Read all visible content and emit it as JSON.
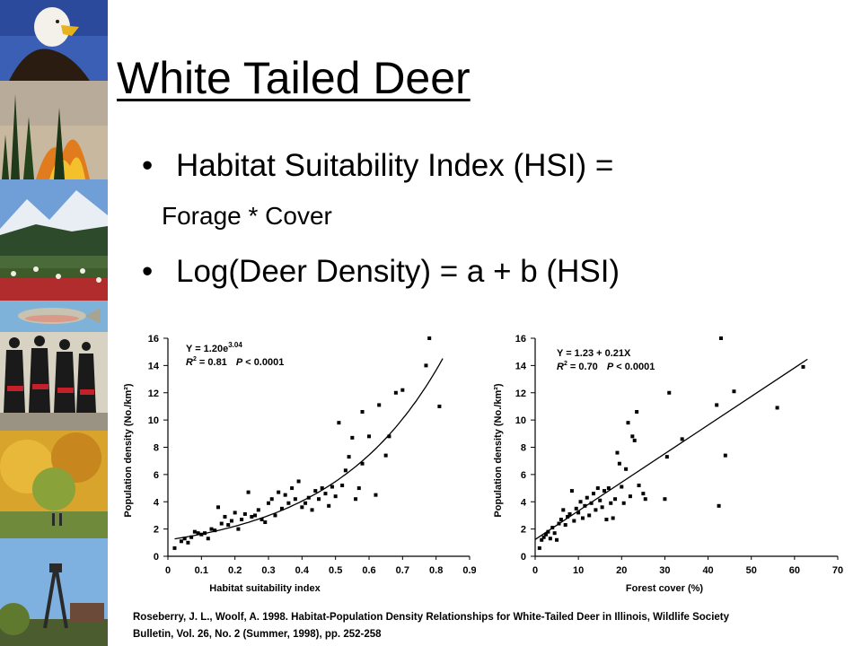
{
  "slide": {
    "title": "White Tailed Deer",
    "bullets": [
      "Habitat Suitability Index (HSI) =",
      "Log(Deer Density) = a + b (HSI)"
    ],
    "sub_bullet": "Forage * Cover",
    "citation": [
      "Roseberry,  J. L., Woolf, A. 1998.  Habitat-Population  Density Relationships for White-Tailed Deer in Illinois, Wildlife Society",
      "Bulletin, Vol. 26, No. 2 (Summer, 1998), pp. 252-258"
    ]
  },
  "photo_strip": {
    "panels": [
      "bald-eagle-photo",
      "forest-fire-photo",
      "mountain-photo",
      "flower-field-photo",
      "fish-photo",
      "dancers-photo",
      "autumn-trees-photo",
      "mine-headframe-photo"
    ]
  },
  "chart_data": [
    {
      "type": "scatter",
      "xlabel": "Habitat suitability index",
      "ylabel": "Population density (No./km²)",
      "xlim": [
        0,
        0.9
      ],
      "ylim": [
        0,
        16
      ],
      "xticks": [
        "0",
        "0.1",
        "0.2",
        "0.3",
        "0.4",
        "0.5",
        "0.6",
        "0.7",
        "0.8",
        "0.9"
      ],
      "yticks": [
        "0",
        "2",
        "4",
        "6",
        "8",
        "10",
        "12",
        "14",
        "16"
      ],
      "annotation": {
        "eq_prefix": "Y = 1.20e",
        "eq_exp": "3.04",
        "r2_prefix": "R",
        "r2_value": " = 0.81",
        "p_label": "P",
        "p_value": " < 0.0001"
      },
      "fit": {
        "form": "exponential",
        "a": 1.2,
        "b": 3.04,
        "x_range": [
          0.02,
          0.82
        ]
      },
      "points": [
        [
          0.02,
          0.6
        ],
        [
          0.04,
          1.1
        ],
        [
          0.05,
          1.3
        ],
        [
          0.06,
          1.0
        ],
        [
          0.07,
          1.4
        ],
        [
          0.08,
          1.8
        ],
        [
          0.09,
          1.7
        ],
        [
          0.1,
          1.6
        ],
        [
          0.11,
          1.7
        ],
        [
          0.12,
          1.3
        ],
        [
          0.13,
          2.0
        ],
        [
          0.14,
          1.9
        ],
        [
          0.15,
          3.6
        ],
        [
          0.16,
          2.4
        ],
        [
          0.17,
          2.9
        ],
        [
          0.18,
          2.3
        ],
        [
          0.19,
          2.6
        ],
        [
          0.2,
          3.2
        ],
        [
          0.21,
          2.0
        ],
        [
          0.22,
          2.7
        ],
        [
          0.23,
          3.1
        ],
        [
          0.24,
          4.7
        ],
        [
          0.25,
          2.9
        ],
        [
          0.26,
          3.0
        ],
        [
          0.27,
          3.4
        ],
        [
          0.28,
          2.7
        ],
        [
          0.29,
          2.5
        ],
        [
          0.3,
          3.9
        ],
        [
          0.31,
          4.2
        ],
        [
          0.32,
          3.0
        ],
        [
          0.33,
          4.7
        ],
        [
          0.34,
          3.5
        ],
        [
          0.35,
          4.5
        ],
        [
          0.36,
          3.9
        ],
        [
          0.37,
          5.0
        ],
        [
          0.38,
          4.2
        ],
        [
          0.39,
          5.5
        ],
        [
          0.4,
          3.6
        ],
        [
          0.41,
          3.9
        ],
        [
          0.42,
          4.3
        ],
        [
          0.43,
          3.4
        ],
        [
          0.44,
          4.8
        ],
        [
          0.45,
          4.2
        ],
        [
          0.46,
          5.0
        ],
        [
          0.47,
          4.6
        ],
        [
          0.48,
          3.7
        ],
        [
          0.49,
          5.1
        ],
        [
          0.5,
          4.4
        ],
        [
          0.51,
          9.8
        ],
        [
          0.52,
          5.2
        ],
        [
          0.53,
          6.3
        ],
        [
          0.54,
          7.3
        ],
        [
          0.55,
          8.7
        ],
        [
          0.56,
          4.2
        ],
        [
          0.57,
          5.0
        ],
        [
          0.58,
          10.6
        ],
        [
          0.58,
          6.8
        ],
        [
          0.6,
          8.8
        ],
        [
          0.62,
          4.5
        ],
        [
          0.63,
          11.1
        ],
        [
          0.65,
          7.4
        ],
        [
          0.66,
          8.8
        ],
        [
          0.68,
          12.0
        ],
        [
          0.7,
          12.2
        ],
        [
          0.77,
          14.0
        ],
        [
          0.78,
          16.0
        ],
        [
          0.81,
          11.0
        ]
      ]
    },
    {
      "type": "scatter",
      "xlabel": "Forest cover (%)",
      "ylabel": "Population density (No./km²)",
      "xlim": [
        0,
        70
      ],
      "ylim": [
        0,
        16
      ],
      "xticks": [
        "0",
        "10",
        "20",
        "30",
        "40",
        "50",
        "60",
        "70"
      ],
      "yticks": [
        "0",
        "2",
        "4",
        "6",
        "8",
        "10",
        "12",
        "14",
        "16"
      ],
      "annotation": {
        "eq_text": "Y = 1.23 + 0.21X",
        "r2_prefix": "R",
        "r2_value": " = 0.70",
        "p_label": "P",
        "p_value": " < 0.0001"
      },
      "fit": {
        "form": "linear",
        "intercept": 1.23,
        "slope": 0.21,
        "x_range": [
          0,
          63
        ]
      },
      "points": [
        [
          1,
          0.6
        ],
        [
          1.5,
          1.2
        ],
        [
          2,
          1.4
        ],
        [
          2.5,
          1.6
        ],
        [
          3,
          1.8
        ],
        [
          3.5,
          1.3
        ],
        [
          4,
          2.1
        ],
        [
          4.5,
          1.7
        ],
        [
          5,
          1.2
        ],
        [
          5.5,
          2.4
        ],
        [
          6,
          2.7
        ],
        [
          6.5,
          3.4
        ],
        [
          7,
          2.3
        ],
        [
          7.5,
          2.9
        ],
        [
          8,
          3.1
        ],
        [
          8.5,
          4.8
        ],
        [
          9,
          2.6
        ],
        [
          9.5,
          3.5
        ],
        [
          10,
          3.2
        ],
        [
          10.5,
          4.0
        ],
        [
          11,
          2.8
        ],
        [
          11.5,
          3.7
        ],
        [
          12,
          4.3
        ],
        [
          12.5,
          3.0
        ],
        [
          13,
          3.9
        ],
        [
          13.5,
          4.6
        ],
        [
          14,
          3.4
        ],
        [
          14.5,
          5.0
        ],
        [
          15,
          4.1
        ],
        [
          15.5,
          3.6
        ],
        [
          16,
          4.8
        ],
        [
          16.5,
          2.7
        ],
        [
          17,
          5.0
        ],
        [
          17.5,
          3.9
        ],
        [
          18,
          2.8
        ],
        [
          18.5,
          4.2
        ],
        [
          19,
          7.6
        ],
        [
          19.5,
          6.8
        ],
        [
          20,
          5.1
        ],
        [
          20.5,
          3.9
        ],
        [
          21,
          6.4
        ],
        [
          21.5,
          9.8
        ],
        [
          22,
          4.4
        ],
        [
          22.5,
          8.8
        ],
        [
          23,
          8.5
        ],
        [
          23.5,
          10.6
        ],
        [
          24,
          5.2
        ],
        [
          25,
          4.6
        ],
        [
          25.5,
          4.2
        ],
        [
          30,
          4.2
        ],
        [
          30.5,
          7.3
        ],
        [
          31,
          12.0
        ],
        [
          34,
          8.6
        ],
        [
          42,
          11.1
        ],
        [
          42.5,
          3.7
        ],
        [
          43,
          16.0
        ],
        [
          44,
          7.4
        ],
        [
          46,
          12.1
        ],
        [
          56,
          10.9
        ],
        [
          62,
          13.9
        ]
      ]
    }
  ]
}
